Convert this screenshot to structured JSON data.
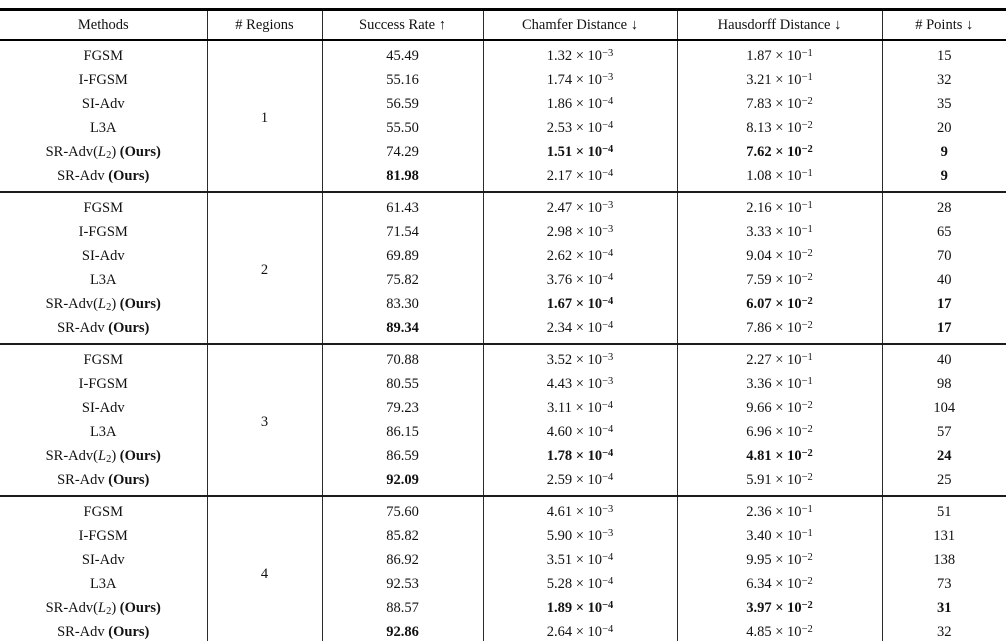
{
  "table": {
    "ours_label": "(Ours)",
    "headers": [
      {
        "label": "Methods",
        "arrow": ""
      },
      {
        "label": "# Regions",
        "arrow": ""
      },
      {
        "label": "Success Rate",
        "arrow": "↑"
      },
      {
        "label": "Chamfer Distance",
        "arrow": "↓"
      },
      {
        "label": "Hausdorff Distance",
        "arrow": "↓"
      },
      {
        "label": "# Points",
        "arrow": "↓"
      }
    ],
    "groups": [
      {
        "regions": "1",
        "rows": [
          {
            "method": {
              "base": "FGSM"
            },
            "success": "45.49",
            "chamfer": [
              "1.32",
              "-3"
            ],
            "hausdorff": [
              "1.87",
              "-1"
            ],
            "points": "15",
            "bold": []
          },
          {
            "method": {
              "base": "I-FGSM"
            },
            "success": "55.16",
            "chamfer": [
              "1.74",
              "-3"
            ],
            "hausdorff": [
              "3.21",
              "-1"
            ],
            "points": "32",
            "bold": []
          },
          {
            "method": {
              "base": "SI-Adv"
            },
            "success": "56.59",
            "chamfer": [
              "1.86",
              "-4"
            ],
            "hausdorff": [
              "7.83",
              "-2"
            ],
            "points": "35",
            "bold": []
          },
          {
            "method": {
              "base": "L3A"
            },
            "success": "55.50",
            "chamfer": [
              "2.53",
              "-4"
            ],
            "hausdorff": [
              "8.13",
              "-2"
            ],
            "points": "20",
            "bold": []
          },
          {
            "method": {
              "base": "SR-Adv",
              "sub": "L2",
              "ours": true
            },
            "success": "74.29",
            "chamfer": [
              "1.51",
              "-4"
            ],
            "hausdorff": [
              "7.62",
              "-2"
            ],
            "points": "9",
            "bold": [
              "chamfer",
              "hausdorff",
              "points"
            ]
          },
          {
            "method": {
              "base": "SR-Adv",
              "ours": true
            },
            "success": "81.98",
            "chamfer": [
              "2.17",
              "-4"
            ],
            "hausdorff": [
              "1.08",
              "-1"
            ],
            "points": "9",
            "bold": [
              "success",
              "points"
            ]
          }
        ]
      },
      {
        "regions": "2",
        "rows": [
          {
            "method": {
              "base": "FGSM"
            },
            "success": "61.43",
            "chamfer": [
              "2.47",
              "-3"
            ],
            "hausdorff": [
              "2.16",
              "-1"
            ],
            "points": "28",
            "bold": []
          },
          {
            "method": {
              "base": "I-FGSM"
            },
            "success": "71.54",
            "chamfer": [
              "2.98",
              "-3"
            ],
            "hausdorff": [
              "3.33",
              "-1"
            ],
            "points": "65",
            "bold": []
          },
          {
            "method": {
              "base": "SI-Adv"
            },
            "success": "69.89",
            "chamfer": [
              "2.62",
              "-4"
            ],
            "hausdorff": [
              "9.04",
              "-2"
            ],
            "points": "70",
            "bold": []
          },
          {
            "method": {
              "base": "L3A"
            },
            "success": "75.82",
            "chamfer": [
              "3.76",
              "-4"
            ],
            "hausdorff": [
              "7.59",
              "-2"
            ],
            "points": "40",
            "bold": []
          },
          {
            "method": {
              "base": "SR-Adv",
              "sub": "L2",
              "ours": true
            },
            "success": "83.30",
            "chamfer": [
              "1.67",
              "-4"
            ],
            "hausdorff": [
              "6.07",
              "-2"
            ],
            "points": "17",
            "bold": [
              "chamfer",
              "hausdorff",
              "points"
            ]
          },
          {
            "method": {
              "base": "SR-Adv",
              "ours": true
            },
            "success": "89.34",
            "chamfer": [
              "2.34",
              "-4"
            ],
            "hausdorff": [
              "7.86",
              "-2"
            ],
            "points": "17",
            "bold": [
              "success",
              "points"
            ]
          }
        ]
      },
      {
        "regions": "3",
        "rows": [
          {
            "method": {
              "base": "FGSM"
            },
            "success": "70.88",
            "chamfer": [
              "3.52",
              "-3"
            ],
            "hausdorff": [
              "2.27",
              "-1"
            ],
            "points": "40",
            "bold": []
          },
          {
            "method": {
              "base": "I-FGSM"
            },
            "success": "80.55",
            "chamfer": [
              "4.43",
              "-3"
            ],
            "hausdorff": [
              "3.36",
              "-1"
            ],
            "points": "98",
            "bold": []
          },
          {
            "method": {
              "base": "SI-Adv"
            },
            "success": "79.23",
            "chamfer": [
              "3.11",
              "-4"
            ],
            "hausdorff": [
              "9.66",
              "-2"
            ],
            "points": "104",
            "bold": []
          },
          {
            "method": {
              "base": "L3A"
            },
            "success": "86.15",
            "chamfer": [
              "4.60",
              "-4"
            ],
            "hausdorff": [
              "6.96",
              "-2"
            ],
            "points": "57",
            "bold": []
          },
          {
            "method": {
              "base": "SR-Adv",
              "sub": "L2",
              "ours": true
            },
            "success": "86.59",
            "chamfer": [
              "1.78",
              "-4"
            ],
            "hausdorff": [
              "4.81",
              "-2"
            ],
            "points": "24",
            "bold": [
              "chamfer",
              "hausdorff",
              "points"
            ]
          },
          {
            "method": {
              "base": "SR-Adv",
              "ours": true
            },
            "success": "92.09",
            "chamfer": [
              "2.59",
              "-4"
            ],
            "hausdorff": [
              "5.91",
              "-2"
            ],
            "points": "25",
            "bold": [
              "success"
            ]
          }
        ]
      },
      {
        "regions": "4",
        "rows": [
          {
            "method": {
              "base": "FGSM"
            },
            "success": "75.60",
            "chamfer": [
              "4.61",
              "-3"
            ],
            "hausdorff": [
              "2.36",
              "-1"
            ],
            "points": "51",
            "bold": []
          },
          {
            "method": {
              "base": "I-FGSM"
            },
            "success": "85.82",
            "chamfer": [
              "5.90",
              "-3"
            ],
            "hausdorff": [
              "3.40",
              "-1"
            ],
            "points": "131",
            "bold": []
          },
          {
            "method": {
              "base": "SI-Adv"
            },
            "success": "86.92",
            "chamfer": [
              "3.51",
              "-4"
            ],
            "hausdorff": [
              "9.95",
              "-2"
            ],
            "points": "138",
            "bold": []
          },
          {
            "method": {
              "base": "L3A"
            },
            "success": "92.53",
            "chamfer": [
              "5.28",
              "-4"
            ],
            "hausdorff": [
              "6.34",
              "-2"
            ],
            "points": "73",
            "bold": []
          },
          {
            "method": {
              "base": "SR-Adv",
              "sub": "L2",
              "ours": true
            },
            "success": "88.57",
            "chamfer": [
              "1.89",
              "-4"
            ],
            "hausdorff": [
              "3.97",
              "-2"
            ],
            "points": "31",
            "bold": [
              "chamfer",
              "hausdorff",
              "points"
            ]
          },
          {
            "method": {
              "base": "SR-Adv",
              "ours": true
            },
            "success": "92.86",
            "chamfer": [
              "2.64",
              "-4"
            ],
            "hausdorff": [
              "4.85",
              "-2"
            ],
            "points": "32",
            "bold": [
              "success"
            ]
          }
        ]
      }
    ]
  }
}
